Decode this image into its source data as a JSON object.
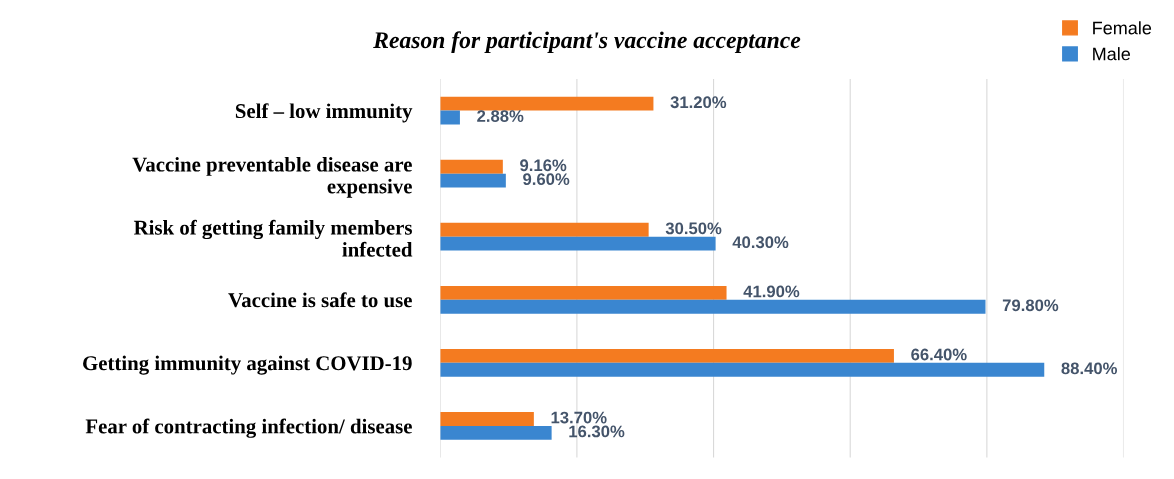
{
  "chart_data": {
    "type": "bar",
    "orientation": "horizontal",
    "title": "Reason for participant's vaccine acceptance",
    "categories": [
      "Self – low immunity",
      "Vaccine preventable disease are\nexpensive",
      "Risk of getting family members\ninfected",
      "Vaccine is safe to use",
      "Getting immunity against COVID-19",
      "Fear of contracting infection/ disease"
    ],
    "series": [
      {
        "name": "Female",
        "color": "#f47b20",
        "values": [
          31.2,
          9.16,
          30.5,
          41.9,
          66.4,
          13.7
        ],
        "value_labels": [
          "31.20%",
          "9.16%",
          "30.50%",
          "41.90%",
          "66.40%",
          "13.70%"
        ]
      },
      {
        "name": "Male",
        "color": "#3a86d0",
        "values": [
          2.88,
          9.6,
          40.3,
          79.8,
          88.4,
          16.3
        ],
        "value_labels": [
          "2.88%",
          "9.60%",
          "40.30%",
          "79.80%",
          "88.40%",
          "16.30%"
        ]
      }
    ],
    "xlim": [
      0,
      100
    ],
    "xticks": [
      {
        "value": 0,
        "label": null
      },
      {
        "value": 20,
        "label": null
      },
      {
        "value": 40,
        "label": null
      },
      {
        "value": 60,
        "label": null
      },
      {
        "value": 80,
        "label": null
      },
      {
        "value": 100,
        "label": null
      }
    ],
    "tick_labels": "y",
    "grid": "x",
    "legend": "top right"
  }
}
